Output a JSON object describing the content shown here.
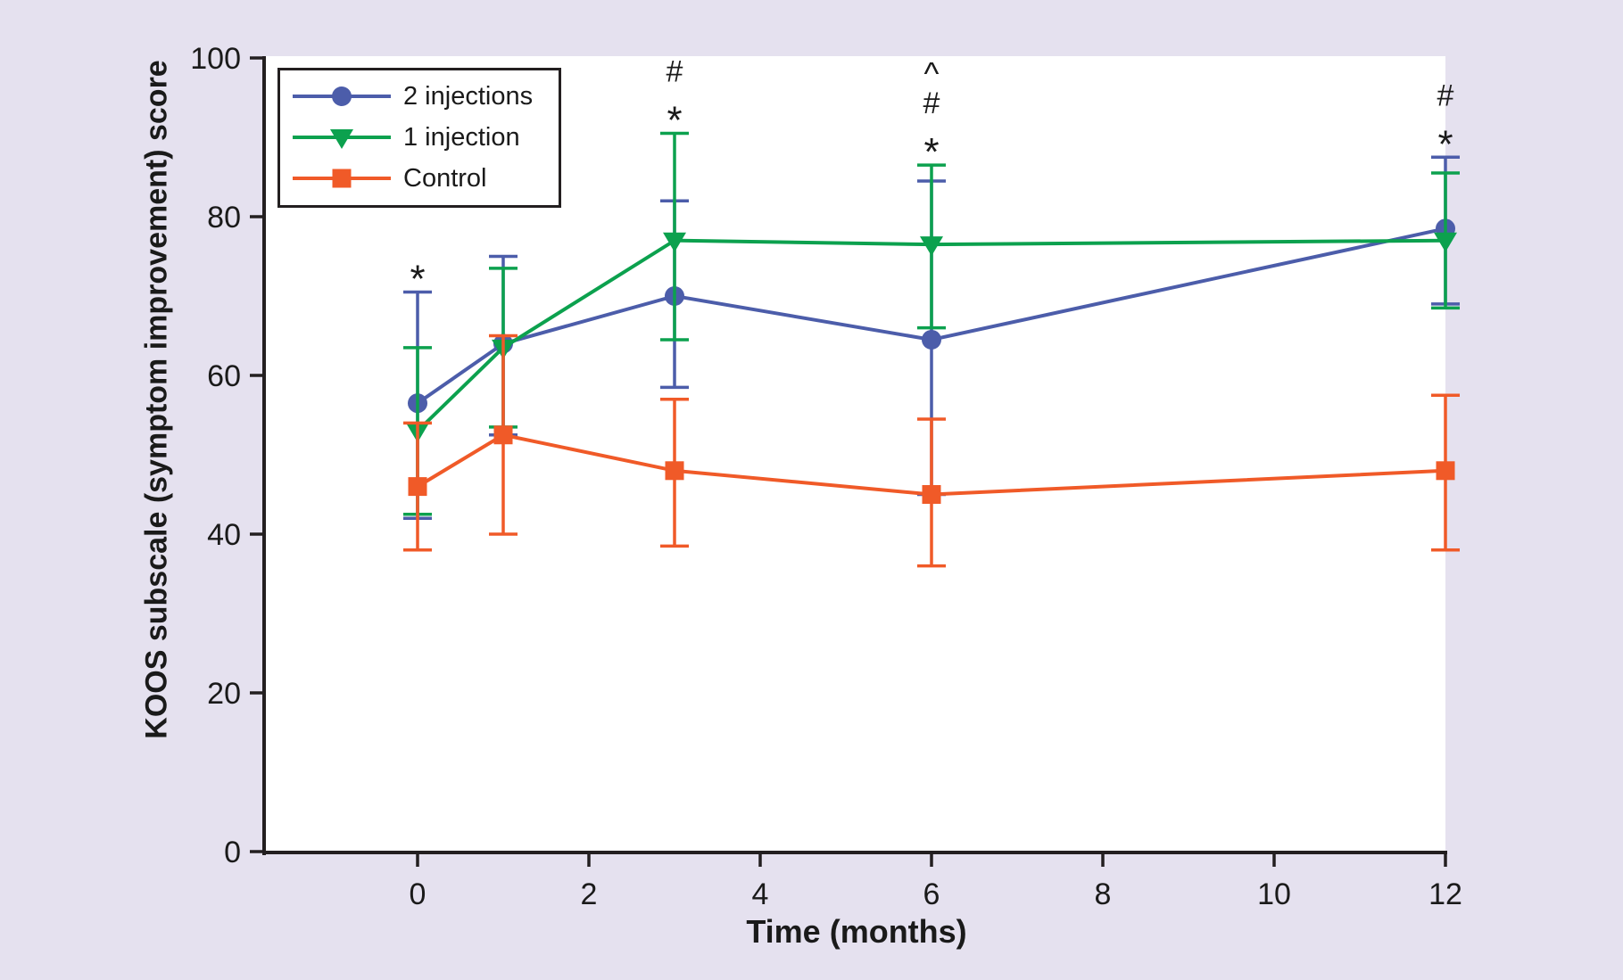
{
  "figure": {
    "background_color": "#E5E1EF",
    "plot_background_color": "#FFFFFF",
    "axis_color": "#231F20",
    "text_color": "#1A1A1A"
  },
  "chart_data": {
    "type": "line",
    "title": "",
    "xlabel": "Time (months)",
    "ylabel": "KOOS subscale (symptom improvement) score",
    "x": [
      0,
      1,
      3,
      6,
      12
    ],
    "x_ticks": [
      0,
      2,
      4,
      6,
      8,
      10,
      12
    ],
    "y_ticks": [
      0,
      20,
      40,
      60,
      80,
      100
    ],
    "xlim": [
      -1.8,
      12
    ],
    "ylim": [
      0,
      100
    ],
    "grid": false,
    "error_bars": true,
    "legend_position": "top-left",
    "series": [
      {
        "name": "2 injections",
        "marker": "circle",
        "color": "#4C5DAA",
        "values": [
          56.5,
          64,
          70,
          64.5,
          78.5
        ],
        "err_upper": [
          70.5,
          75,
          82,
          84.5,
          87.5
        ],
        "err_lower": [
          42,
          52.5,
          58.5,
          45,
          69
        ]
      },
      {
        "name": "1 injection",
        "marker": "triangle-down",
        "color": "#0CA14E",
        "values": [
          53,
          63.5,
          77,
          76.5,
          77
        ],
        "err_upper": [
          63.5,
          73.5,
          90.5,
          86.5,
          85.5
        ],
        "err_lower": [
          42.5,
          53.5,
          64.5,
          66,
          68.5
        ]
      },
      {
        "name": "Control",
        "marker": "square",
        "color": "#F05A28",
        "values": [
          46,
          52.5,
          48,
          45,
          48
        ],
        "err_upper": [
          54,
          65,
          57,
          54.5,
          57.5
        ],
        "err_lower": [
          38,
          40,
          38.5,
          36,
          38
        ]
      }
    ],
    "annotations": [
      {
        "month": 0,
        "symbols": [
          "*"
        ]
      },
      {
        "month": 3,
        "symbols": [
          "#",
          "*"
        ]
      },
      {
        "month": 6,
        "symbols": [
          "^",
          "#",
          "*"
        ]
      },
      {
        "month": 12,
        "symbols": [
          "#",
          "*"
        ]
      }
    ]
  }
}
